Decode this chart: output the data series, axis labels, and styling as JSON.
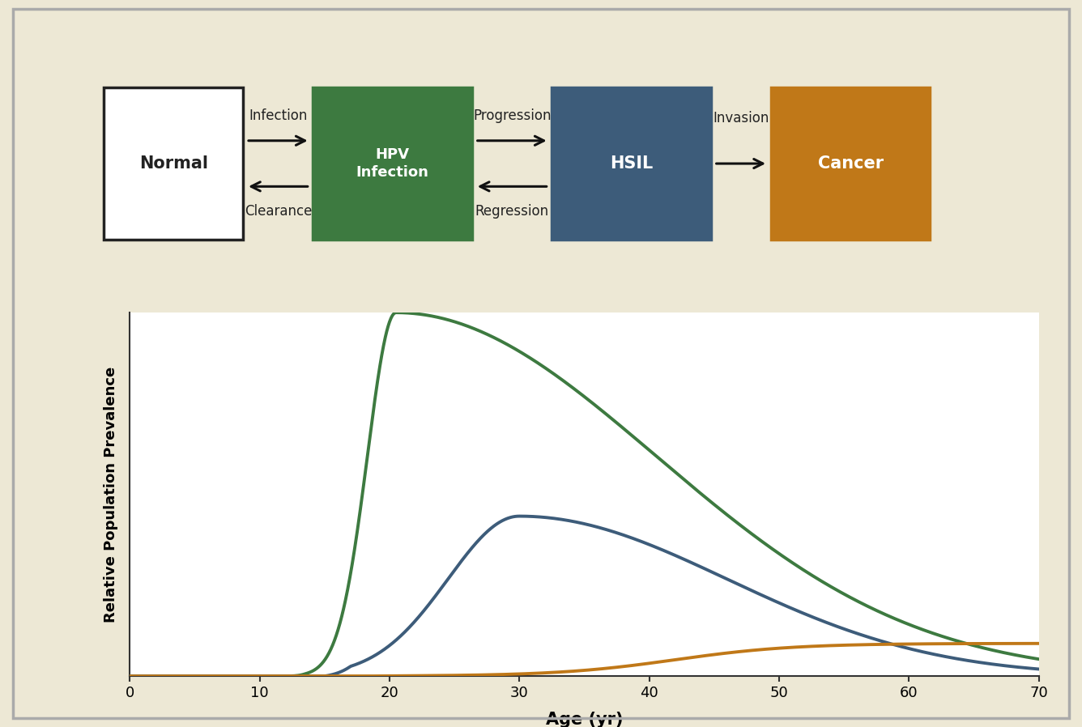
{
  "bg_color": "#ede8d5",
  "plot_bg_color": "#ffffff",
  "border_color": "#999999",
  "box_normal_facecolor": "#ffffff",
  "box_normal_edgecolor": "#222222",
  "box_hpv_facecolor": "#3d7a40",
  "box_hsil_facecolor": "#3d5c7a",
  "box_cancer_facecolor": "#c07818",
  "box_text_normal": "#222222",
  "box_text_hpv": "#ffffff",
  "box_text_hsil": "#ffffff",
  "box_text_cancer": "#ffffff",
  "label_infection": "Infection",
  "label_clearance": "Clearance",
  "label_progression": "Progression",
  "label_regression": "Regression",
  "label_invasion": "Invasion",
  "box_normal_text": "Normal",
  "box_hpv_text": "HPV\nInfection",
  "box_hsil_text": "HSIL",
  "box_cancer_text": "Cancer",
  "xlabel": "Age (yr)",
  "ylabel": "Relative Population Prevalence",
  "xticks": [
    0,
    10,
    20,
    30,
    40,
    50,
    60,
    70
  ],
  "xlim": [
    0,
    70
  ],
  "ylim": [
    0,
    1.0
  ],
  "green_color": "#3d7a40",
  "blue_color": "#3d5c7a",
  "orange_color": "#c07818",
  "line_width": 2.8
}
